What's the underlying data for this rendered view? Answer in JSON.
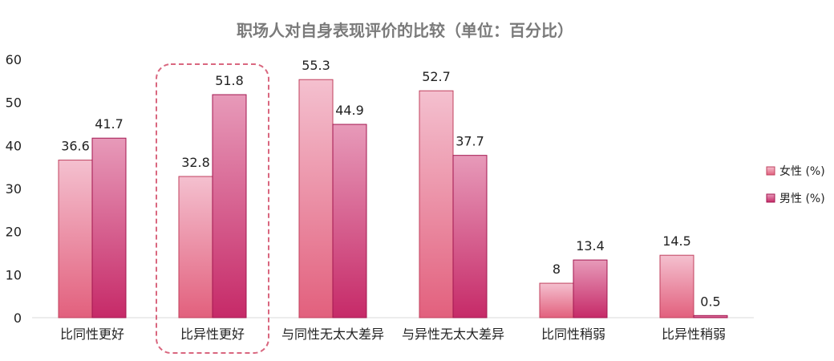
{
  "chart_data": {
    "type": "bar",
    "title": "职场人对自身表现评价的比较（单位：百分比）",
    "categories": [
      "比同性更好",
      "比异性更好",
      "与同性无太大差异",
      "与异性无太大差异",
      "比同性稍弱",
      "比异性稍弱"
    ],
    "series": [
      {
        "name": "女性 (%)",
        "values": [
          36.6,
          32.8,
          55.3,
          52.7,
          8,
          14.5
        ],
        "color_top": "#f4c0cf",
        "color_bottom": "#e2607d",
        "stroke": "#c0405e"
      },
      {
        "name": "男性 (%)",
        "values": [
          41.7,
          51.8,
          44.9,
          37.7,
          13.4,
          0.5
        ],
        "color_top": "#e79ab9",
        "color_bottom": "#c62a68",
        "stroke": "#a3164f"
      }
    ],
    "ylim": [
      0,
      60
    ],
    "yticks": [
      0,
      10,
      20,
      30,
      40,
      50,
      60
    ],
    "xlabel": "",
    "ylabel": "",
    "grid": false,
    "legend_position": "right",
    "highlighted_category": "比异性更好",
    "highlight_color": "#d9677f"
  }
}
